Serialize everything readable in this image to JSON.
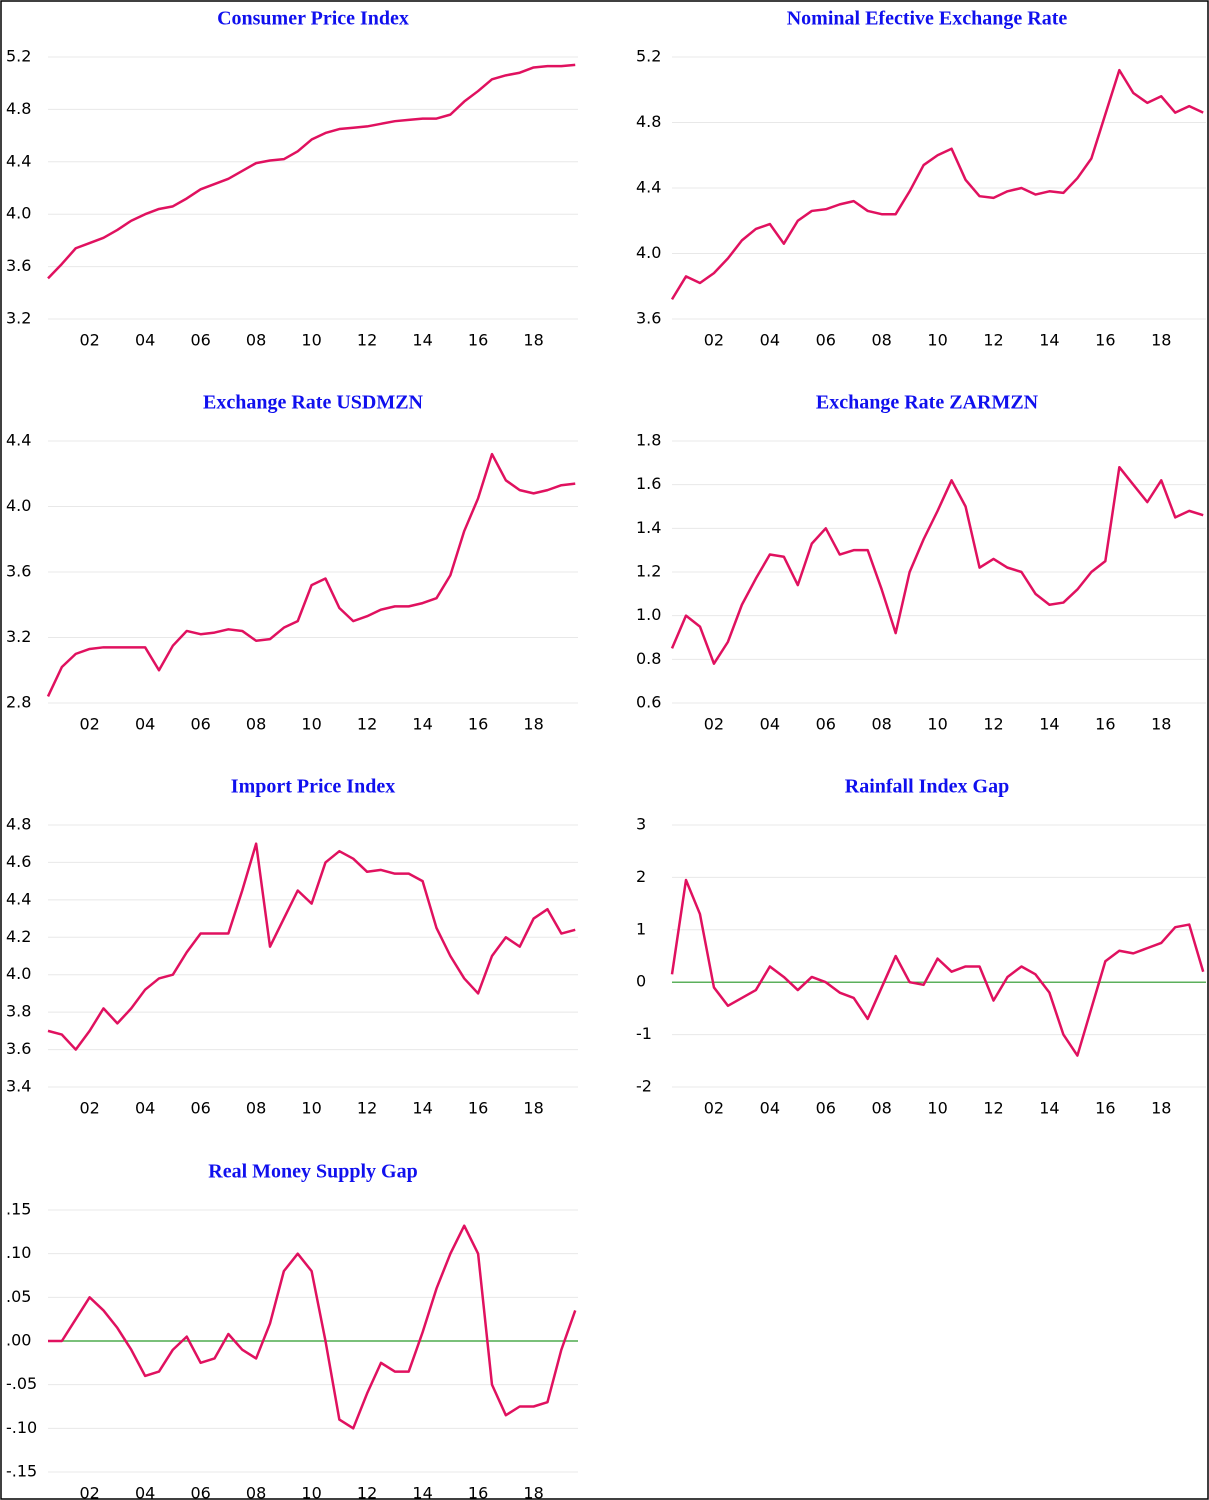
{
  "chart_data": [
    {
      "type": "line",
      "title": "Consumer Price Index",
      "color": "#e0115f",
      "grid": true,
      "x": [
        0.5,
        1,
        1.5,
        2,
        2.5,
        3,
        3.5,
        4,
        4.5,
        5,
        5.5,
        6,
        6.5,
        7,
        7.5,
        8,
        8.5,
        9,
        9.5,
        10,
        10.5,
        11,
        11.5,
        12,
        12.5,
        13,
        13.5,
        14,
        14.5,
        15,
        15.5,
        16,
        16.5,
        17,
        17.5,
        18,
        18.5,
        19,
        19.5
      ],
      "values": [
        3.51,
        3.62,
        3.74,
        3.78,
        3.82,
        3.88,
        3.95,
        4.0,
        4.04,
        4.06,
        4.12,
        4.19,
        4.23,
        4.27,
        4.33,
        4.39,
        4.41,
        4.42,
        4.48,
        4.57,
        4.62,
        4.65,
        4.66,
        4.67,
        4.69,
        4.71,
        4.72,
        4.73,
        4.73,
        4.76,
        4.86,
        4.94,
        5.03,
        5.06,
        5.08,
        5.12,
        5.13,
        5.13,
        5.14
      ],
      "xlim": [
        0.5,
        19.6
      ],
      "xticks": [
        {
          "value": 2,
          "label": "02"
        },
        {
          "value": 4,
          "label": "04"
        },
        {
          "value": 6,
          "label": "06"
        },
        {
          "value": 8,
          "label": "08"
        },
        {
          "value": 10,
          "label": "10"
        },
        {
          "value": 12,
          "label": "12"
        },
        {
          "value": 14,
          "label": "14"
        },
        {
          "value": 16,
          "label": "16"
        },
        {
          "value": 18,
          "label": "18"
        }
      ],
      "ylim": [
        3.2,
        5.2
      ],
      "yticks": [
        3.2,
        3.6,
        {
          "value": 4,
          "label": "4.0"
        },
        4.4,
        4.8,
        5.2
      ]
    },
    {
      "type": "line",
      "title": "Nominal Efective Exchange Rate",
      "color": "#e0115f",
      "grid": true,
      "x": [
        0.5,
        1,
        1.5,
        2,
        2.5,
        3,
        3.5,
        4,
        4.5,
        5,
        5.5,
        6,
        6.5,
        7,
        7.5,
        8,
        8.5,
        9,
        9.5,
        10,
        10.5,
        11,
        11.5,
        12,
        12.5,
        13,
        13.5,
        14,
        14.5,
        15,
        15.5,
        16,
        16.5,
        17,
        17.5,
        18,
        18.5,
        19,
        19.5
      ],
      "values": [
        3.72,
        3.86,
        3.82,
        3.88,
        3.97,
        4.08,
        4.15,
        4.18,
        4.06,
        4.2,
        4.26,
        4.27,
        4.3,
        4.32,
        4.26,
        4.24,
        4.24,
        4.38,
        4.54,
        4.6,
        4.64,
        4.45,
        4.35,
        4.34,
        4.38,
        4.4,
        4.36,
        4.38,
        4.37,
        4.46,
        4.58,
        4.85,
        5.12,
        4.98,
        4.92,
        4.96,
        4.86,
        4.9,
        4.86
      ],
      "xlim": [
        0.5,
        19.6
      ],
      "xticks": [
        {
          "value": 2,
          "label": "02"
        },
        {
          "value": 4,
          "label": "04"
        },
        {
          "value": 6,
          "label": "06"
        },
        {
          "value": 8,
          "label": "08"
        },
        {
          "value": 10,
          "label": "10"
        },
        {
          "value": 12,
          "label": "12"
        },
        {
          "value": 14,
          "label": "14"
        },
        {
          "value": 16,
          "label": "16"
        },
        {
          "value": 18,
          "label": "18"
        }
      ],
      "ylim": [
        3.6,
        5.2
      ],
      "yticks": [
        3.6,
        {
          "value": 4,
          "label": "4.0"
        },
        4.4,
        4.8,
        5.2
      ]
    },
    {
      "type": "line",
      "title": "Exchange Rate USDMZN",
      "color": "#e0115f",
      "grid": true,
      "x": [
        0.5,
        1,
        1.5,
        2,
        2.5,
        3,
        3.5,
        4,
        4.5,
        5,
        5.5,
        6,
        6.5,
        7,
        7.5,
        8,
        8.5,
        9,
        9.5,
        10,
        10.5,
        11,
        11.5,
        12,
        12.5,
        13,
        13.5,
        14,
        14.5,
        15,
        15.5,
        16,
        16.5,
        17,
        17.5,
        18,
        18.5,
        19,
        19.5
      ],
      "values": [
        2.84,
        3.02,
        3.1,
        3.13,
        3.14,
        3.14,
        3.14,
        3.14,
        3.0,
        3.15,
        3.24,
        3.22,
        3.23,
        3.25,
        3.24,
        3.18,
        3.19,
        3.26,
        3.3,
        3.52,
        3.56,
        3.38,
        3.3,
        3.33,
        3.37,
        3.39,
        3.39,
        3.41,
        3.44,
        3.58,
        3.85,
        4.05,
        4.32,
        4.16,
        4.1,
        4.08,
        4.1,
        4.13,
        4.14
      ],
      "xlim": [
        0.5,
        19.6
      ],
      "xticks": [
        {
          "value": 2,
          "label": "02"
        },
        {
          "value": 4,
          "label": "04"
        },
        {
          "value": 6,
          "label": "06"
        },
        {
          "value": 8,
          "label": "08"
        },
        {
          "value": 10,
          "label": "10"
        },
        {
          "value": 12,
          "label": "12"
        },
        {
          "value": 14,
          "label": "14"
        },
        {
          "value": 16,
          "label": "16"
        },
        {
          "value": 18,
          "label": "18"
        }
      ],
      "ylim": [
        2.8,
        4.4
      ],
      "yticks": [
        2.8,
        3.2,
        3.6,
        {
          "value": 4,
          "label": "4.0"
        },
        4.4
      ]
    },
    {
      "type": "line",
      "title": "Exchange Rate ZARMZN",
      "color": "#e0115f",
      "grid": true,
      "x": [
        0.5,
        1,
        1.5,
        2,
        2.5,
        3,
        3.5,
        4,
        4.5,
        5,
        5.5,
        6,
        6.5,
        7,
        7.5,
        8,
        8.5,
        9,
        9.5,
        10,
        10.5,
        11,
        11.5,
        12,
        12.5,
        13,
        13.5,
        14,
        14.5,
        15,
        15.5,
        16,
        16.5,
        17,
        17.5,
        18,
        18.5,
        19,
        19.5
      ],
      "values": [
        0.85,
        1.0,
        0.95,
        0.78,
        0.88,
        1.05,
        1.17,
        1.28,
        1.27,
        1.14,
        1.33,
        1.4,
        1.28,
        1.3,
        1.3,
        1.12,
        0.92,
        1.2,
        1.35,
        1.48,
        1.62,
        1.5,
        1.22,
        1.26,
        1.22,
        1.2,
        1.1,
        1.05,
        1.06,
        1.12,
        1.2,
        1.25,
        1.68,
        1.6,
        1.52,
        1.62,
        1.45,
        1.48,
        1.46
      ],
      "xlim": [
        0.5,
        19.6
      ],
      "xticks": [
        {
          "value": 2,
          "label": "02"
        },
        {
          "value": 4,
          "label": "04"
        },
        {
          "value": 6,
          "label": "06"
        },
        {
          "value": 8,
          "label": "08"
        },
        {
          "value": 10,
          "label": "10"
        },
        {
          "value": 12,
          "label": "12"
        },
        {
          "value": 14,
          "label": "14"
        },
        {
          "value": 16,
          "label": "16"
        },
        {
          "value": 18,
          "label": "18"
        }
      ],
      "ylim": [
        0.6,
        1.8
      ],
      "yticks": [
        0.6,
        0.8,
        {
          "value": 1,
          "label": "1.0"
        },
        1.2,
        1.4,
        1.6,
        1.8
      ]
    },
    {
      "type": "line",
      "title": "Import Price Index",
      "color": "#e0115f",
      "grid": true,
      "x": [
        0.5,
        1,
        1.5,
        2,
        2.5,
        3,
        3.5,
        4,
        4.5,
        5,
        5.5,
        6,
        6.5,
        7,
        7.5,
        8,
        8.5,
        9,
        9.5,
        10,
        10.5,
        11,
        11.5,
        12,
        12.5,
        13,
        13.5,
        14,
        14.5,
        15,
        15.5,
        16,
        16.5,
        17,
        17.5,
        18,
        18.5,
        19,
        19.5
      ],
      "values": [
        3.7,
        3.68,
        3.6,
        3.7,
        3.82,
        3.74,
        3.82,
        3.92,
        3.98,
        4.0,
        4.12,
        4.22,
        4.22,
        4.22,
        4.45,
        4.7,
        4.15,
        4.3,
        4.45,
        4.38,
        4.6,
        4.66,
        4.62,
        4.55,
        4.56,
        4.54,
        4.54,
        4.5,
        4.25,
        4.1,
        3.98,
        3.9,
        4.1,
        4.2,
        4.15,
        4.3,
        4.35,
        4.22,
        4.24
      ],
      "xlim": [
        0.5,
        19.6
      ],
      "xticks": [
        {
          "value": 2,
          "label": "02"
        },
        {
          "value": 4,
          "label": "04"
        },
        {
          "value": 6,
          "label": "06"
        },
        {
          "value": 8,
          "label": "08"
        },
        {
          "value": 10,
          "label": "10"
        },
        {
          "value": 12,
          "label": "12"
        },
        {
          "value": 14,
          "label": "14"
        },
        {
          "value": 16,
          "label": "16"
        },
        {
          "value": 18,
          "label": "18"
        }
      ],
      "ylim": [
        3.4,
        4.8
      ],
      "yticks": [
        3.4,
        3.6,
        3.8,
        {
          "value": 4,
          "label": "4.0"
        },
        4.2,
        4.4,
        4.6,
        4.8
      ]
    },
    {
      "type": "line",
      "title": "Rainfall Index Gap",
      "color": "#e0115f",
      "grid": true,
      "zero_line": true,
      "zero_line_color": "#2a9a2a",
      "x": [
        0.5,
        1,
        1.5,
        2,
        2.5,
        3,
        3.5,
        4,
        4.5,
        5,
        5.5,
        6,
        6.5,
        7,
        7.5,
        8,
        8.5,
        9,
        9.5,
        10,
        10.5,
        11,
        11.5,
        12,
        12.5,
        13,
        13.5,
        14,
        14.5,
        15,
        15.5,
        16,
        16.5,
        17,
        17.5,
        18,
        18.5,
        19,
        19.5
      ],
      "values": [
        0.15,
        1.95,
        1.3,
        -0.1,
        -0.45,
        -0.3,
        -0.15,
        0.3,
        0.1,
        -0.15,
        0.1,
        0.0,
        -0.2,
        -0.3,
        -0.7,
        -0.1,
        0.5,
        0.0,
        -0.05,
        0.45,
        0.2,
        0.3,
        0.3,
        -0.35,
        0.1,
        0.3,
        0.15,
        -0.2,
        -1.0,
        -1.4,
        -0.5,
        0.4,
        0.6,
        0.55,
        0.65,
        0.75,
        1.05,
        1.1,
        0.2
      ],
      "xlim": [
        0.5,
        19.6
      ],
      "xticks": [
        {
          "value": 2,
          "label": "02"
        },
        {
          "value": 4,
          "label": "04"
        },
        {
          "value": 6,
          "label": "06"
        },
        {
          "value": 8,
          "label": "08"
        },
        {
          "value": 10,
          "label": "10"
        },
        {
          "value": 12,
          "label": "12"
        },
        {
          "value": 14,
          "label": "14"
        },
        {
          "value": 16,
          "label": "16"
        },
        {
          "value": 18,
          "label": "18"
        }
      ],
      "ylim": [
        -2,
        3
      ],
      "yticks": [
        -2,
        -1,
        0,
        1,
        2,
        3
      ]
    },
    {
      "type": "line",
      "title": "Real Money Supply Gap",
      "color": "#e0115f",
      "grid": true,
      "zero_line": true,
      "zero_line_color": "#2a9a2a",
      "x": [
        0.5,
        1,
        1.5,
        2,
        2.5,
        3,
        3.5,
        4,
        4.5,
        5,
        5.5,
        6,
        6.5,
        7,
        7.5,
        8,
        8.5,
        9,
        9.5,
        10,
        10.5,
        11,
        11.5,
        12,
        12.5,
        13,
        13.5,
        14,
        14.5,
        15,
        15.5,
        16,
        16.5,
        17,
        17.5,
        18,
        18.5,
        19,
        19.5
      ],
      "values": [
        0.0,
        0.0,
        0.025,
        0.05,
        0.035,
        0.015,
        -0.01,
        -0.04,
        -0.035,
        -0.01,
        0.005,
        -0.025,
        -0.02,
        0.008,
        -0.01,
        -0.02,
        0.02,
        0.08,
        0.1,
        0.08,
        0.0,
        -0.09,
        -0.1,
        -0.06,
        -0.025,
        -0.035,
        -0.035,
        0.01,
        0.06,
        0.1,
        0.132,
        0.1,
        -0.05,
        -0.085,
        -0.075,
        -0.075,
        -0.07,
        -0.01,
        0.035
      ],
      "xlim": [
        0.5,
        19.6
      ],
      "xticks": [
        {
          "value": 2,
          "label": "02"
        },
        {
          "value": 4,
          "label": "04"
        },
        {
          "value": 6,
          "label": "06"
        },
        {
          "value": 8,
          "label": "08"
        },
        {
          "value": 10,
          "label": "10"
        },
        {
          "value": 12,
          "label": "12"
        },
        {
          "value": 14,
          "label": "14"
        },
        {
          "value": 16,
          "label": "16"
        },
        {
          "value": 18,
          "label": "18"
        }
      ],
      "ylim": [
        -0.15,
        0.15
      ],
      "yticks": [
        {
          "value": -0.15,
          "label": "-.15"
        },
        {
          "value": -0.1,
          "label": "-.10"
        },
        {
          "value": -0.05,
          "label": "-.05"
        },
        {
          "value": 0,
          "label": ".00"
        },
        {
          "value": 0.05,
          "label": ".05"
        },
        {
          "value": 0.1,
          "label": ".10"
        },
        {
          "value": 0.15,
          "label": ".15"
        }
      ]
    }
  ]
}
